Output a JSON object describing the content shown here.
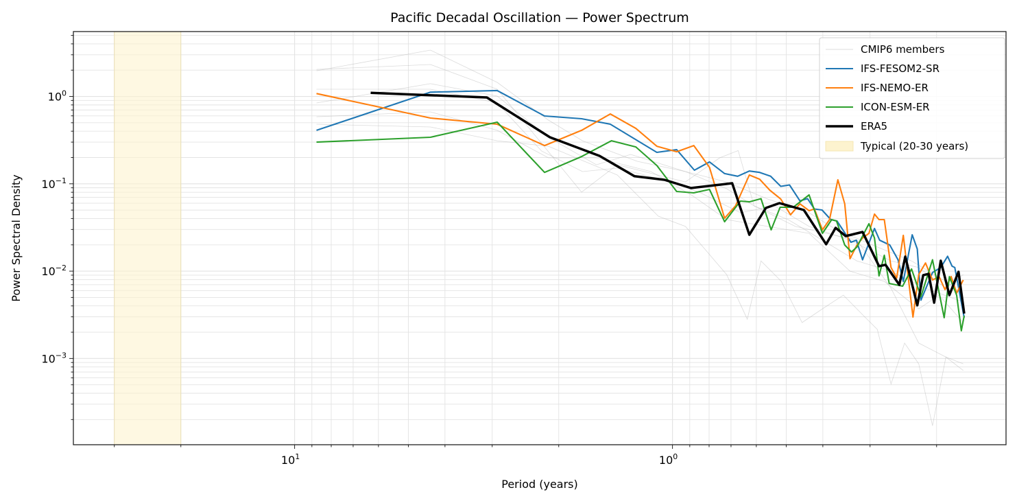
{
  "chart_data": {
    "type": "line",
    "title": "Pacific Decadal Oscillation — Power Spectrum",
    "xlabel": "Period (years)",
    "ylabel": "Power Spectral Density",
    "x_scale": "log",
    "y_scale": "log",
    "x_inverted": true,
    "xlim": [
      38.5,
      0.131
    ],
    "ylim": [
      0.000103,
      5.53
    ],
    "x_ticks": [
      {
        "value": 10,
        "label": "10",
        "exp": "1"
      },
      {
        "value": 1,
        "label": "10",
        "exp": "0"
      }
    ],
    "y_ticks": [
      {
        "value": 1,
        "label": "10",
        "exp": "0"
      },
      {
        "value": 0.1,
        "label": "10",
        "exp": "−1"
      },
      {
        "value": 0.01,
        "label": "10",
        "exp": "−2"
      },
      {
        "value": 0.001,
        "label": "10",
        "exp": "−3"
      }
    ],
    "grid": true,
    "legend_position": "top-right",
    "shaded_band": {
      "label": "Typical (20-30 years)",
      "range": [
        20,
        30
      ],
      "color": "#fdf3cf"
    },
    "ensemble": {
      "name": "CMIP6 members",
      "color": "#b0b0b0",
      "members": [
        [
          [
            8.75,
            1.97
          ],
          [
            4.37,
            3.39
          ],
          [
            2.91,
            1.45
          ],
          [
            2.13,
            0.536
          ],
          [
            1.73,
            0.311
          ],
          [
            1.24,
            0.181
          ],
          [
            0.924,
            0.138
          ],
          [
            0.719,
            0.0878
          ],
          [
            0.608,
            0.0559
          ],
          [
            0.494,
            0.0389
          ],
          [
            0.401,
            0.0226
          ],
          [
            0.325,
            0.0131
          ],
          [
            0.264,
            0.01
          ],
          [
            0.214,
            0.00637
          ],
          [
            0.17,
            0.00443
          ]
        ],
        [
          [
            8.75,
            2.04
          ],
          [
            4.37,
            2.32
          ],
          [
            2.91,
            1.21
          ],
          [
            1.74,
            0.0802
          ],
          [
            1.4,
            0.165
          ],
          [
            0.924,
            0.105
          ],
          [
            0.75,
            0.198
          ],
          [
            0.67,
            0.24
          ],
          [
            0.608,
            0.0559
          ],
          [
            0.473,
            0.0325
          ],
          [
            0.325,
            0.0226
          ],
          [
            0.264,
            0.00637
          ],
          [
            0.223,
            0.0015
          ],
          [
            0.189,
            0.00104
          ],
          [
            0.17,
            0.00087
          ]
        ],
        [
          [
            8.75,
            0.481
          ],
          [
            4.37,
            0.447
          ],
          [
            2.91,
            0.311
          ],
          [
            2.13,
            0.269
          ],
          [
            1.4,
            0.126
          ],
          [
            1.09,
            0.0426
          ],
          [
            0.924,
            0.0325
          ],
          [
            0.719,
            0.00914
          ],
          [
            0.634,
            0.00282
          ],
          [
            0.583,
            0.0131
          ],
          [
            0.515,
            0.00763
          ],
          [
            0.454,
            0.00258
          ],
          [
            0.401,
            0.0037
          ],
          [
            0.353,
            0.00531
          ],
          [
            0.312,
            0.00309
          ],
          [
            0.287,
            0.00215
          ],
          [
            0.264,
            0.00051
          ],
          [
            0.243,
            0.0015
          ],
          [
            0.223,
            0.00087
          ],
          [
            0.205,
            0.00017
          ],
          [
            0.189,
            0.00104
          ],
          [
            0.17,
            0.00073
          ]
        ],
        [
          [
            8.75,
            0.842
          ],
          [
            4.37,
            1.4
          ],
          [
            2.91,
            1.01
          ],
          [
            2.13,
            0.341
          ],
          [
            1.59,
            0.165
          ],
          [
            1.29,
            0.217
          ],
          [
            0.924,
            0.138
          ],
          [
            0.719,
            0.105
          ],
          [
            0.56,
            0.0669
          ],
          [
            0.435,
            0.0466
          ],
          [
            0.368,
            0.0297
          ],
          [
            0.287,
            0.0189
          ],
          [
            0.233,
            0.0131
          ],
          [
            0.189,
            0.00763
          ],
          [
            0.17,
            0.00531
          ]
        ],
        [
          [
            8.75,
            1.21
          ],
          [
            4.37,
            1.21
          ],
          [
            2.91,
            0.842
          ],
          [
            2.22,
            0.237
          ],
          [
            1.73,
            0.138
          ],
          [
            1.4,
            0.151
          ],
          [
            1.09,
            0.115
          ],
          [
            0.85,
            0.0802
          ],
          [
            0.661,
            0.0466
          ],
          [
            0.537,
            0.0559
          ],
          [
            0.435,
            0.0325
          ],
          [
            0.339,
            0.0226
          ],
          [
            0.264,
            0.0131
          ],
          [
            0.223,
            0.011
          ],
          [
            0.189,
            0.00637
          ],
          [
            0.17,
            0.00914
          ]
        ],
        [
          [
            8.75,
            0.586
          ],
          [
            4.37,
            0.666
          ],
          [
            2.91,
            0.409
          ],
          [
            2.13,
            0.198
          ],
          [
            1.59,
            0.198
          ],
          [
            1.14,
            0.138
          ],
          [
            0.886,
            0.0733
          ],
          [
            0.719,
            0.0389
          ],
          [
            0.56,
            0.0325
          ],
          [
            0.435,
            0.0271
          ],
          [
            0.339,
            0.01
          ],
          [
            0.275,
            0.00763
          ],
          [
            0.223,
            0.0037
          ],
          [
            0.197,
            0.00531
          ],
          [
            0.17,
            0.00258
          ]
        ]
      ]
    },
    "series": [
      {
        "name": "IFS-FESOM2-SR",
        "color": "#1f77b4",
        "points": [
          [
            8.75,
            0.409
          ],
          [
            4.37,
            1.12
          ],
          [
            2.91,
            1.17
          ],
          [
            2.18,
            0.597
          ],
          [
            1.74,
            0.556
          ],
          [
            1.46,
            0.481
          ],
          [
            1.1,
            0.229
          ],
          [
            0.975,
            0.246
          ],
          [
            0.875,
            0.143
          ],
          [
            0.798,
            0.178
          ],
          [
            0.728,
            0.131
          ],
          [
            0.672,
            0.122
          ],
          [
            0.626,
            0.14
          ],
          [
            0.588,
            0.135
          ],
          [
            0.55,
            0.122
          ],
          [
            0.517,
            0.0935
          ],
          [
            0.49,
            0.097
          ],
          [
            0.46,
            0.0639
          ],
          [
            0.439,
            0.0676
          ],
          [
            0.421,
            0.0515
          ],
          [
            0.402,
            0.0501
          ],
          [
            0.381,
            0.0389
          ],
          [
            0.367,
            0.0375
          ],
          [
            0.337,
            0.0214
          ],
          [
            0.326,
            0.0226
          ],
          [
            0.314,
            0.0135
          ],
          [
            0.292,
            0.0308
          ],
          [
            0.283,
            0.0226
          ],
          [
            0.266,
            0.0199
          ],
          [
            0.253,
            0.0135
          ],
          [
            0.245,
            0.00763
          ],
          [
            0.232,
            0.0261
          ],
          [
            0.225,
            0.0179
          ],
          [
            0.22,
            0.00465
          ],
          [
            0.205,
            0.00964
          ],
          [
            0.195,
            0.011
          ],
          [
            0.187,
            0.0148
          ],
          [
            0.182,
            0.0114
          ],
          [
            0.179,
            0.011
          ],
          [
            0.169,
            0.00293
          ]
        ]
      },
      {
        "name": "IFS-NEMO-ER",
        "color": "#ff7f0e",
        "points": [
          [
            8.75,
            1.08
          ],
          [
            4.37,
            0.566
          ],
          [
            2.91,
            0.481
          ],
          [
            2.18,
            0.274
          ],
          [
            1.74,
            0.409
          ],
          [
            1.46,
            0.63
          ],
          [
            1.25,
            0.431
          ],
          [
            1.1,
            0.269
          ],
          [
            0.975,
            0.233
          ],
          [
            0.878,
            0.274
          ],
          [
            0.798,
            0.154
          ],
          [
            0.728,
            0.0404
          ],
          [
            0.681,
            0.0559
          ],
          [
            0.626,
            0.126
          ],
          [
            0.588,
            0.113
          ],
          [
            0.553,
            0.0847
          ],
          [
            0.517,
            0.0669
          ],
          [
            0.487,
            0.0442
          ],
          [
            0.46,
            0.059
          ],
          [
            0.435,
            0.0492
          ],
          [
            0.421,
            0.0515
          ],
          [
            0.401,
            0.0297
          ],
          [
            0.384,
            0.0389
          ],
          [
            0.365,
            0.111
          ],
          [
            0.35,
            0.059
          ],
          [
            0.339,
            0.0139
          ],
          [
            0.325,
            0.0199
          ],
          [
            0.314,
            0.0239
          ],
          [
            0.302,
            0.0271
          ],
          [
            0.292,
            0.045
          ],
          [
            0.284,
            0.0389
          ],
          [
            0.275,
            0.0389
          ],
          [
            0.264,
            0.011
          ],
          [
            0.255,
            0.00836
          ],
          [
            0.245,
            0.0257
          ],
          [
            0.231,
            0.00298
          ],
          [
            0.223,
            0.00914
          ],
          [
            0.214,
            0.0124
          ],
          [
            0.205,
            0.00792
          ],
          [
            0.197,
            0.00867
          ],
          [
            0.19,
            0.00615
          ],
          [
            0.183,
            0.00867
          ],
          [
            0.177,
            0.00561
          ],
          [
            0.17,
            0.00792
          ]
        ]
      },
      {
        "name": "ICON-ESM-ER",
        "color": "#2ca02c",
        "points": [
          [
            8.75,
            0.3
          ],
          [
            4.37,
            0.341
          ],
          [
            2.91,
            0.508
          ],
          [
            2.18,
            0.135
          ],
          [
            1.74,
            0.205
          ],
          [
            1.45,
            0.311
          ],
          [
            1.25,
            0.264
          ],
          [
            1.1,
            0.162
          ],
          [
            0.975,
            0.0816
          ],
          [
            0.878,
            0.0787
          ],
          [
            0.798,
            0.0862
          ],
          [
            0.728,
            0.0368
          ],
          [
            0.661,
            0.0634
          ],
          [
            0.626,
            0.0622
          ],
          [
            0.583,
            0.0676
          ],
          [
            0.548,
            0.0297
          ],
          [
            0.519,
            0.0539
          ],
          [
            0.479,
            0.0539
          ],
          [
            0.435,
            0.0746
          ],
          [
            0.401,
            0.0271
          ],
          [
            0.379,
            0.0389
          ],
          [
            0.368,
            0.0375
          ],
          [
            0.35,
            0.0199
          ],
          [
            0.336,
            0.0166
          ],
          [
            0.325,
            0.0189
          ],
          [
            0.302,
            0.0349
          ],
          [
            0.292,
            0.0239
          ],
          [
            0.284,
            0.00883
          ],
          [
            0.275,
            0.0152
          ],
          [
            0.267,
            0.00723
          ],
          [
            0.246,
            0.00673
          ],
          [
            0.233,
            0.0106
          ],
          [
            0.22,
            0.00513
          ],
          [
            0.205,
            0.0135
          ],
          [
            0.191,
            0.00293
          ],
          [
            0.185,
            0.00867
          ],
          [
            0.177,
            0.00531
          ],
          [
            0.172,
            0.00208
          ],
          [
            0.169,
            0.00309
          ]
        ]
      },
      {
        "name": "ERA5",
        "color": "#000000",
        "points": [
          [
            6.29,
            1.1
          ],
          [
            3.1,
            0.973
          ],
          [
            2.11,
            0.341
          ],
          [
            1.56,
            0.209
          ],
          [
            1.26,
            0.122
          ],
          [
            1.05,
            0.111
          ],
          [
            0.893,
            0.0894
          ],
          [
            0.695,
            0.1014
          ],
          [
            0.626,
            0.0261
          ],
          [
            0.566,
            0.0529
          ],
          [
            0.521,
            0.06
          ],
          [
            0.449,
            0.0501
          ],
          [
            0.392,
            0.0203
          ],
          [
            0.37,
            0.0313
          ],
          [
            0.348,
            0.0252
          ],
          [
            0.314,
            0.0281
          ],
          [
            0.284,
            0.0114
          ],
          [
            0.273,
            0.0118
          ],
          [
            0.251,
            0.00698
          ],
          [
            0.242,
            0.01466
          ],
          [
            0.225,
            0.00406
          ],
          [
            0.217,
            0.009
          ],
          [
            0.21,
            0.0093
          ],
          [
            0.203,
            0.00436
          ],
          [
            0.195,
            0.01315
          ],
          [
            0.185,
            0.00532
          ],
          [
            0.175,
            0.00984
          ],
          [
            0.169,
            0.00327
          ]
        ]
      }
    ]
  }
}
